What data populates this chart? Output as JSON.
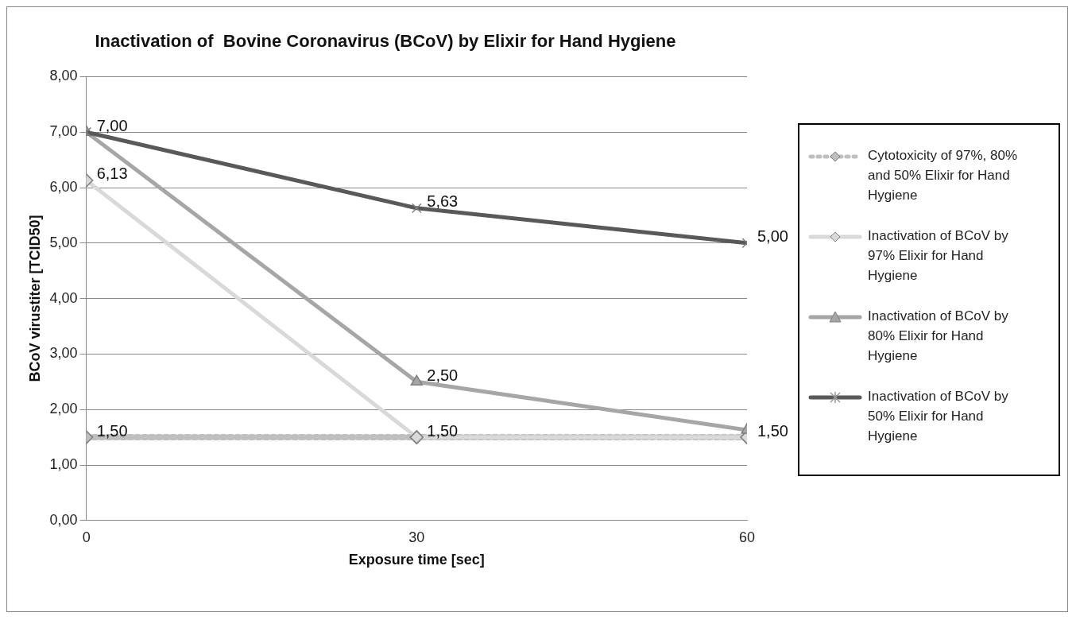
{
  "chart_data": {
    "type": "line",
    "title": "Inactivation of  Bovine Coronavirus (BCoV) by Elixir for Hand Hygiene",
    "xlabel": "Exposure time [sec]",
    "ylabel": "BCoV virustiter [TCID50]",
    "x": [
      0,
      30,
      60
    ],
    "xlim": [
      0,
      60
    ],
    "xticks": [
      0,
      30,
      60
    ],
    "ylim": [
      0,
      8
    ],
    "yticks": [
      {
        "value": 0,
        "label": "0,00"
      },
      {
        "value": 1,
        "label": "1,00"
      },
      {
        "value": 2,
        "label": "2,00"
      },
      {
        "value": 3,
        "label": "3,00"
      },
      {
        "value": 4,
        "label": "4,00"
      },
      {
        "value": 5,
        "label": "5,00"
      },
      {
        "value": 6,
        "label": "6,00"
      },
      {
        "value": 7,
        "label": "7,00"
      },
      {
        "value": 8,
        "label": "8,00"
      }
    ],
    "grid": "y",
    "legend": "right",
    "series": [
      {
        "name": "Cytotoxicity of 97%, 80% and 50% Elixir for Hand Hygiene",
        "color": "#bfbfbf",
        "values": [
          1.5,
          1.5,
          1.5
        ],
        "marker": "diamond",
        "line_style": "dotted",
        "value_labels": [
          "1,50",
          "1,50",
          "1,50"
        ]
      },
      {
        "name": "Inactivation of BCoV by 97% Elixir for Hand Hygiene",
        "color": "#d9d9d9",
        "values": [
          6.13,
          1.5,
          1.5
        ],
        "marker": "diamond",
        "line_style": "solid",
        "value_labels": [
          "6,13",
          null,
          null
        ]
      },
      {
        "name": "Inactivation of BCoV by 80% Elixir for Hand Hygiene",
        "color": "#a6a6a6",
        "values": [
          7.0,
          2.5,
          1.63
        ],
        "marker": "triangle",
        "line_style": "solid",
        "value_labels": [
          null,
          "2,50",
          null
        ]
      },
      {
        "name": "Inactivation of BCoV by 50% Elixir for Hand Hygiene",
        "color": "#595959",
        "values": [
          7.0,
          5.63,
          5.0
        ],
        "marker": "cross",
        "line_style": "solid",
        "value_labels": [
          "7,00",
          "5,63",
          "5,00"
        ]
      }
    ]
  }
}
